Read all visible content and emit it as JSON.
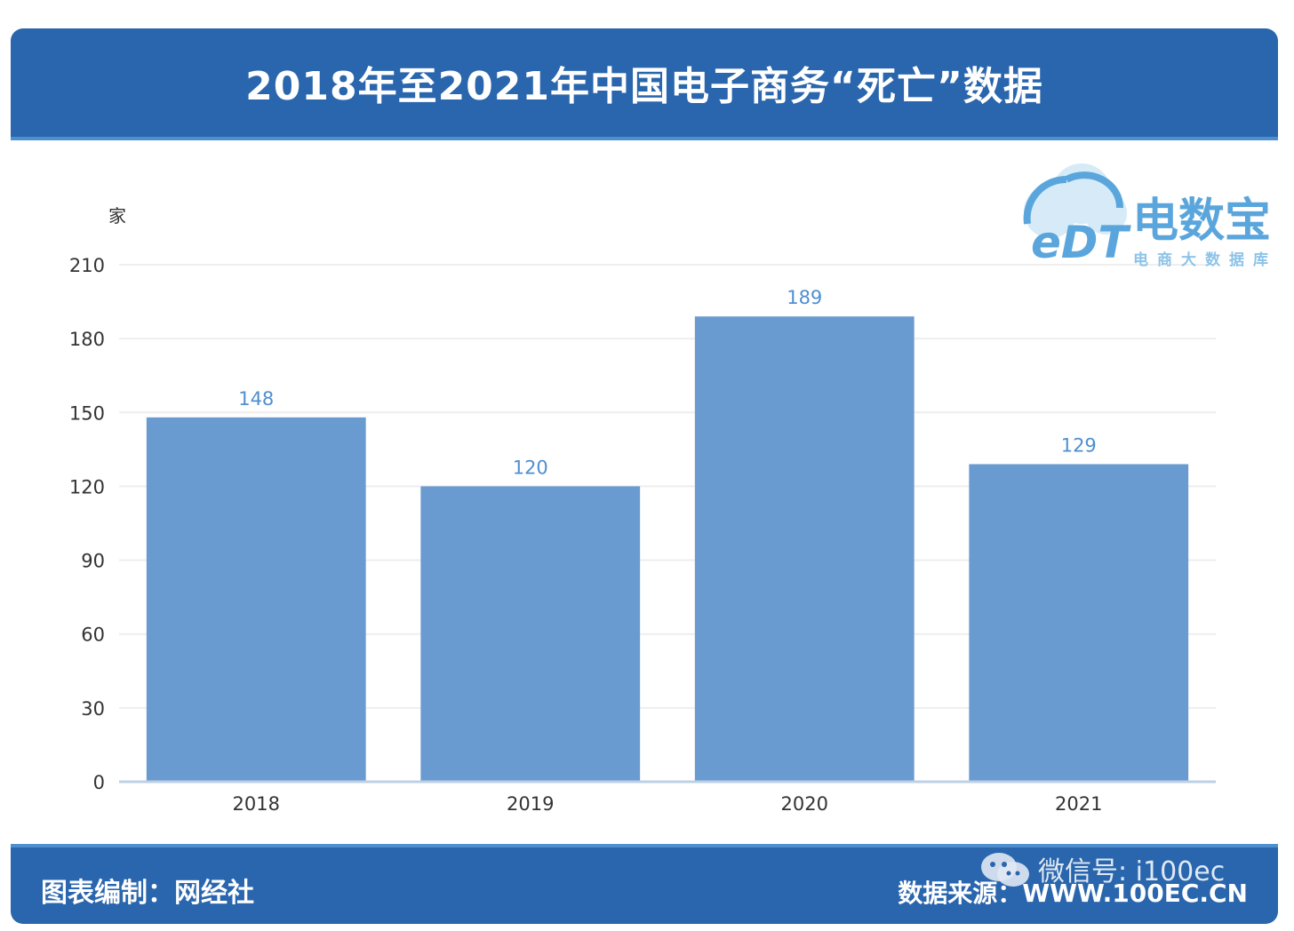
{
  "header": {
    "title": "2018年至2021年中国电子商务“死亡”数据"
  },
  "logo": {
    "mark": "eDT",
    "name": "电数宝",
    "subtitle": "电商大数据库",
    "icon": "cloud-logo-icon"
  },
  "footer": {
    "credit": "图表编制：网经社",
    "source": "数据来源：WWW.100EC.CN",
    "watermark": "微信号: i100ec",
    "watermark_icon": "wechat-icon"
  },
  "colors": {
    "header_bg": "#2a66ad",
    "bar": "#6a9bd0",
    "label": "#4f8fd0",
    "logo": "#5aa6dc"
  },
  "chart_data": {
    "type": "bar",
    "unit": "家",
    "categories": [
      "2018",
      "2019",
      "2020",
      "2021"
    ],
    "values": [
      148,
      120,
      189,
      129
    ],
    "ylim": [
      0,
      210
    ],
    "yticks": [
      0,
      30,
      60,
      90,
      120,
      150,
      180,
      210
    ],
    "grid": true,
    "legend": "none"
  }
}
